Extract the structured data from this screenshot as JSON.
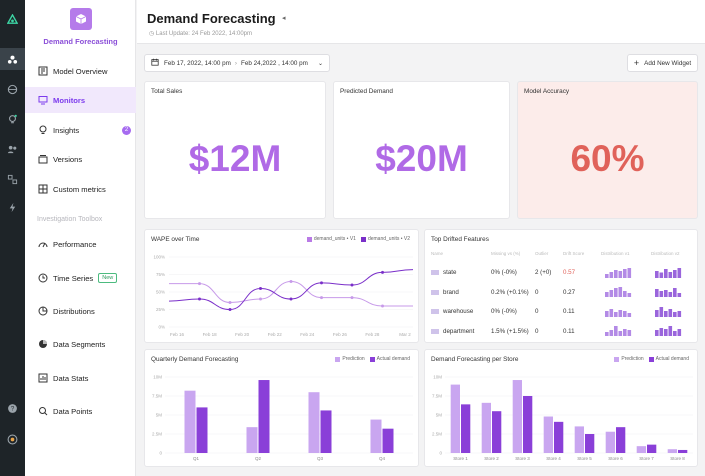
{
  "brand": {
    "name": "Demand Forecasting"
  },
  "nav": {
    "items": [
      {
        "label": "Model Overview",
        "icon": "model-overview-icon"
      },
      {
        "label": "Monitors",
        "icon": "monitors-icon"
      },
      {
        "label": "Insights",
        "icon": "insights-icon",
        "badge": "2"
      },
      {
        "label": "Versions",
        "icon": "versions-icon"
      },
      {
        "label": "Custom metrics",
        "icon": "custom-metrics-icon"
      }
    ],
    "section_label": "Investigation Toolbox",
    "toolbox": [
      {
        "label": "Performance",
        "icon": "performance-icon"
      },
      {
        "label": "Time Series",
        "icon": "time-series-icon",
        "tag": "New"
      },
      {
        "label": "Distributions",
        "icon": "distributions-icon"
      },
      {
        "label": "Data Segments",
        "icon": "data-segments-icon"
      },
      {
        "label": "Data Stats",
        "icon": "data-stats-icon"
      },
      {
        "label": "Data Points",
        "icon": "data-points-icon"
      }
    ]
  },
  "header": {
    "title": "Demand Forecasting",
    "last_update": "Last Update: 24 Feb 2022, 14:00pm"
  },
  "toolbar": {
    "date_start": "Feb 17, 2022, 14:00 pm",
    "date_end": "Feb 24,2022 , 14:00 pm",
    "add_widget": "Add New Widget"
  },
  "kpis": [
    {
      "title": "Total Sales",
      "value": "$12M",
      "color": "#b06ae6"
    },
    {
      "title": "Predicted Demand",
      "value": "$20M",
      "color": "#b06ae6"
    },
    {
      "title": "Model Accuracy",
      "value": "60%",
      "color": "#e0625a",
      "bg": "#fcecea"
    }
  ],
  "wape": {
    "title": "WAPE over Time",
    "series_names": [
      "demand_units • V1",
      "demand_units • V2"
    ],
    "yticks": [
      "100%",
      "75%",
      "50%",
      "25%",
      "0%"
    ],
    "xticks": [
      "Feb 16",
      "Feb 18",
      "Feb 20",
      "Feb 22",
      "Feb 24",
      "Feb 26",
      "Feb 28",
      "Mar 2"
    ],
    "v1": [
      62,
      62,
      35,
      40,
      65,
      42,
      42,
      30,
      30
    ],
    "v2": [
      37,
      40,
      25,
      55,
      40,
      63,
      60,
      78,
      82
    ]
  },
  "drift": {
    "title": "Top Drifted Features",
    "headers": [
      "Name",
      "Missing vs (%)",
      "Outlier",
      "Drift Score",
      "Distribution v1",
      "Distribution v2"
    ],
    "rows": [
      {
        "name": "state",
        "missing": "0% (-0%)",
        "outlier": "2 (+0)",
        "drift": "0.57",
        "highlight": true,
        "d1": [
          40,
          60,
          80,
          70,
          90,
          100
        ],
        "d2": [
          70,
          55,
          90,
          60,
          80,
          100
        ]
      },
      {
        "name": "brand",
        "missing": "0.2% (+0.1%)",
        "outlier": "0",
        "drift": "0.27",
        "d1": [
          50,
          70,
          90,
          100,
          60,
          40
        ],
        "d2": [
          80,
          60,
          70,
          50,
          90,
          40
        ]
      },
      {
        "name": "warehouse",
        "missing": "0% (-0%)",
        "outlier": "0",
        "drift": "0.11",
        "d1": [
          60,
          80,
          50,
          70,
          60,
          40
        ],
        "d2": [
          70,
          100,
          60,
          80,
          50,
          60
        ]
      },
      {
        "name": "department",
        "missing": "1.5% (+1.5%)",
        "outlier": "0",
        "drift": "0.11",
        "d1": [
          40,
          60,
          100,
          50,
          70,
          60
        ],
        "d2": [
          60,
          80,
          70,
          100,
          50,
          70
        ]
      }
    ]
  },
  "quarterly": {
    "title": "Quarterly Demand Forecasting",
    "legend": [
      "Prediction",
      "Actual demand"
    ],
    "yticks": [
      "10M",
      "7.5M",
      "5M",
      "2.5M",
      "0"
    ],
    "categories": [
      "Q1",
      "Q2",
      "Q3",
      "Q4"
    ],
    "prediction": [
      8.2,
      3.4,
      8.0,
      4.4
    ],
    "actual": [
      6.0,
      9.6,
      5.6,
      3.2
    ]
  },
  "store": {
    "title": "Demand Forecasting per Store",
    "legend": [
      "Prediction",
      "Actual demand"
    ],
    "yticks": [
      "10M",
      "7.5M",
      "5M",
      "2.5M",
      "0"
    ],
    "categories": [
      "Store 1",
      "Store 2",
      "Store 3",
      "Store 4",
      "Store 5",
      "Store 6",
      "Store 7",
      "Store 8"
    ],
    "prediction": [
      9.0,
      6.6,
      9.6,
      4.8,
      3.5,
      2.8,
      0.9,
      0.5
    ],
    "actual": [
      6.4,
      5.5,
      7.5,
      4.1,
      2.5,
      3.4,
      1.1,
      0.4
    ]
  },
  "colors": {
    "prediction": "#c9a6f0",
    "actual": "#8a3fd8",
    "accent": "#7c3aed"
  }
}
